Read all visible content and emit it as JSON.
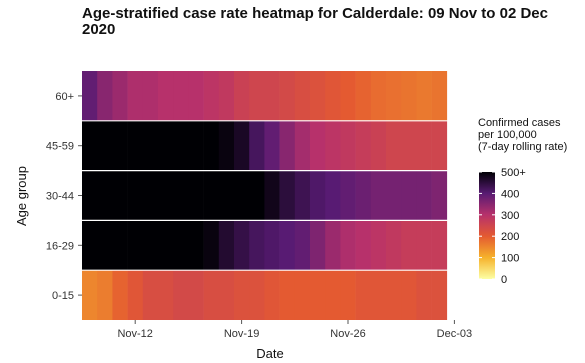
{
  "chart_data": {
    "type": "heatmap",
    "title": "Age-stratified case rate heatmap for Calderdale: 09 Nov to 02 Dec 2020",
    "xlabel": "Date",
    "ylabel": "Age group",
    "x_start": "2020-11-09",
    "x_end": "2020-12-02",
    "x_tick_labels": [
      "Nov-12",
      "Nov-19",
      "Nov-26",
      "Dec-03"
    ],
    "x_tick_dates": [
      "2020-11-12",
      "2020-11-19",
      "2020-11-26",
      "2020-12-03"
    ],
    "age_groups": [
      "60+",
      "45-59",
      "30-44",
      "16-29",
      "0-15"
    ],
    "legend": {
      "title_lines": [
        "Confirmed cases",
        "per 100,000",
        "(7-day rolling rate)"
      ],
      "tick_labels": [
        "500+",
        "400",
        "300",
        "200",
        "100",
        "0"
      ],
      "tick_values": [
        500,
        400,
        300,
        200,
        100,
        0
      ],
      "min": 0,
      "max": 500
    },
    "rows": [
      {
        "group": "60+",
        "values": [
          390,
          350,
          330,
          310,
          310,
          300,
          300,
          300,
          290,
          280,
          260,
          250,
          250,
          240,
          230,
          220,
          210,
          200,
          190,
          180,
          175,
          170,
          165,
          170
        ]
      },
      {
        "group": "45-59",
        "values": [
          520,
          520,
          520,
          520,
          520,
          520,
          520,
          520,
          510,
          490,
          470,
          420,
          390,
          350,
          320,
          300,
          290,
          280,
          270,
          260,
          250,
          250,
          250,
          250
        ]
      },
      {
        "group": "30-44",
        "values": [
          520,
          520,
          520,
          520,
          520,
          520,
          520,
          520,
          520,
          520,
          520,
          510,
          480,
          450,
          430,
          410,
          400,
          390,
          380,
          370,
          370,
          370,
          370,
          360
        ]
      },
      {
        "group": "16-29",
        "values": [
          520,
          520,
          520,
          520,
          520,
          520,
          520,
          520,
          490,
          460,
          440,
          420,
          410,
          400,
          390,
          360,
          330,
          310,
          300,
          290,
          280,
          270,
          270,
          270
        ]
      },
      {
        "group": "0-15",
        "values": [
          150,
          160,
          190,
          210,
          230,
          230,
          240,
          240,
          230,
          230,
          220,
          220,
          210,
          200,
          200,
          200,
          200,
          200,
          210,
          210,
          210,
          210,
          220,
          220
        ]
      }
    ]
  }
}
